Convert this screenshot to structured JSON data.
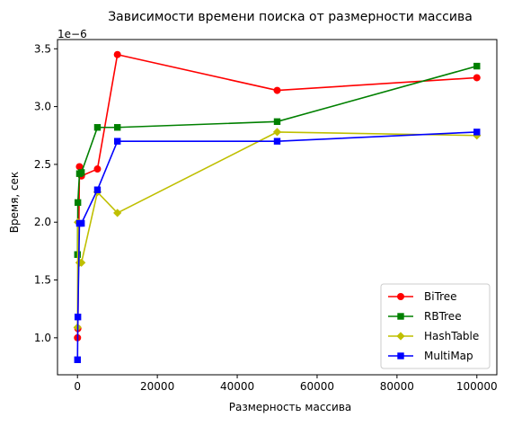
{
  "chart_data": {
    "type": "line",
    "title": "Зависимости времени поиска от размерности массива",
    "xlabel": "Размерность массива",
    "ylabel": "Время, сек",
    "y_offset_label": "1e−6",
    "y_scale": 1e-06,
    "xlim": [
      -5000,
      105000
    ],
    "ylim": [
      0.68,
      3.58
    ],
    "x_ticks": [
      0,
      20000,
      40000,
      60000,
      80000,
      100000
    ],
    "x_tick_labels": [
      "0",
      "20000",
      "40000",
      "60000",
      "80000",
      "100000"
    ],
    "y_ticks": [
      1.0,
      1.5,
      2.0,
      2.5,
      3.0,
      3.5
    ],
    "y_tick_labels": [
      "1.0",
      "1.5",
      "2.0",
      "2.5",
      "3.0",
      "3.5"
    ],
    "grid": false,
    "legend_position": "bottom-right",
    "x": [
      10,
      100,
      500,
      1000,
      5000,
      10000,
      50000,
      100000
    ],
    "series": [
      {
        "name": "BiTree",
        "color": "#ff0000",
        "marker": "circle",
        "values": [
          1.0,
          1.08,
          2.48,
          2.4,
          2.46,
          3.45,
          3.14,
          3.25
        ]
      },
      {
        "name": "RBTree",
        "color": "#008000",
        "marker": "square",
        "values": [
          1.72,
          2.17,
          2.42,
          2.43,
          2.82,
          2.82,
          2.87,
          3.35
        ]
      },
      {
        "name": "HashTable",
        "color": "#bfbf00",
        "marker": "diamond",
        "values": [
          1.09,
          2.0,
          1.65,
          1.65,
          2.26,
          2.08,
          2.78,
          2.75
        ]
      },
      {
        "name": "MultiMap",
        "color": "#0000ff",
        "marker": "square",
        "values": [
          0.81,
          1.18,
          1.99,
          1.99,
          2.28,
          2.7,
          2.7,
          2.78
        ]
      }
    ]
  }
}
